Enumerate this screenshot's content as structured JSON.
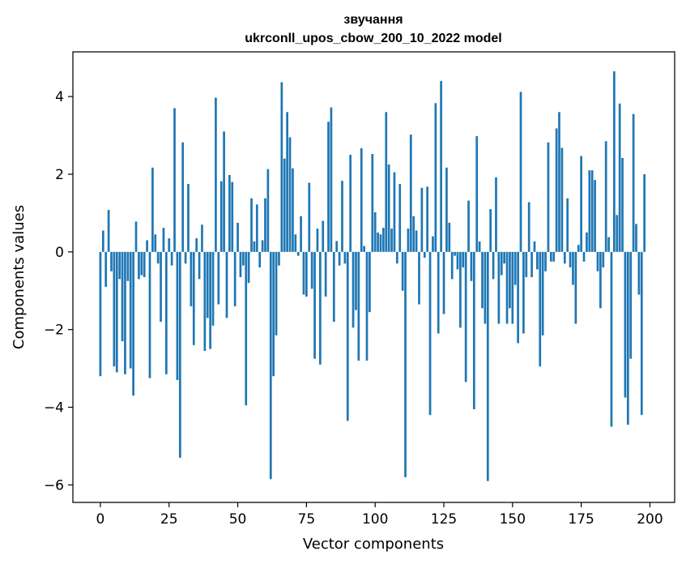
{
  "chart_data": {
    "type": "bar",
    "title_line1": "звучання",
    "title_line2": "ukrconll_upos_cbow_200_10_2022 model",
    "xlabel": "Vector components",
    "ylabel": "Components values",
    "xlim": [
      -10,
      209
    ],
    "ylim": [
      -6.45,
      5.15
    ],
    "xticks": [
      0,
      25,
      50,
      75,
      100,
      125,
      150,
      175,
      200
    ],
    "yticks": [
      -6,
      -4,
      -2,
      0,
      2,
      4
    ],
    "ytick_labels": [
      "−6",
      "−4",
      "−2",
      "0",
      "2",
      "4"
    ],
    "bar_color": "#1f77b4",
    "values": [
      -3.2,
      0.55,
      -0.9,
      1.08,
      -0.5,
      -2.95,
      -3.1,
      -0.7,
      -2.3,
      -3.15,
      -0.75,
      -3.0,
      -3.7,
      0.78,
      -0.7,
      -0.6,
      -0.65,
      0.3,
      -3.25,
      2.17,
      0.45,
      -0.3,
      -1.8,
      0.62,
      -3.15,
      0.35,
      -0.35,
      3.7,
      -3.3,
      -5.3,
      2.82,
      -0.3,
      1.75,
      -1.4,
      -2.4,
      0.35,
      -0.7,
      0.7,
      -2.55,
      -1.7,
      -2.5,
      -1.9,
      3.97,
      -1.35,
      1.82,
      3.1,
      -1.7,
      1.98,
      1.8,
      -1.4,
      0.75,
      -0.65,
      -0.35,
      -3.95,
      -0.8,
      1.38,
      0.27,
      1.22,
      -0.4,
      0.3,
      1.38,
      2.13,
      -5.85,
      -3.2,
      -2.15,
      -0.35,
      4.37,
      2.4,
      3.6,
      2.95,
      2.15,
      0.45,
      -0.1,
      0.92,
      -1.1,
      -1.15,
      1.78,
      -0.95,
      -2.75,
      0.6,
      -2.9,
      0.8,
      -1.15,
      3.35,
      3.72,
      -1.8,
      0.28,
      -0.35,
      1.83,
      -0.3,
      -4.35,
      2.5,
      -1.95,
      -1.5,
      -2.8,
      2.67,
      0.15,
      -2.8,
      -1.55,
      2.52,
      1.02,
      0.5,
      0.45,
      0.62,
      3.6,
      2.25,
      0.6,
      2.05,
      -0.3,
      1.75,
      -1.0,
      -5.8,
      0.6,
      3.02,
      0.92,
      0.55,
      -1.35,
      1.65,
      -0.15,
      1.68,
      -4.2,
      0.4,
      3.83,
      -2.1,
      4.4,
      -1.6,
      2.17,
      0.75,
      -0.7,
      -0.1,
      -0.45,
      -1.95,
      -0.4,
      -3.35,
      1.32,
      -0.75,
      -4.05,
      2.98,
      0.27,
      -1.45,
      -1.85,
      -5.9,
      1.1,
      -0.7,
      1.92,
      -1.85,
      -0.6,
      -0.3,
      -1.85,
      -1.45,
      -1.85,
      -0.85,
      -2.35,
      4.12,
      -2.1,
      -0.65,
      1.28,
      -0.65,
      0.27,
      -0.45,
      -2.95,
      -2.15,
      -0.5,
      2.82,
      -0.25,
      -0.25,
      3.18,
      3.6,
      2.68,
      -0.3,
      1.38,
      -0.4,
      -0.85,
      -1.85,
      0.18,
      2.47,
      -0.25,
      0.5,
      2.1,
      2.1,
      1.85,
      -0.5,
      -1.45,
      -0.4,
      2.85,
      0.38,
      -4.5,
      4.65,
      0.95,
      3.82,
      2.42,
      -3.75,
      -4.45,
      -2.75,
      3.55,
      0.72,
      -1.1,
      -4.2,
      2.0,
      0.0
    ]
  }
}
